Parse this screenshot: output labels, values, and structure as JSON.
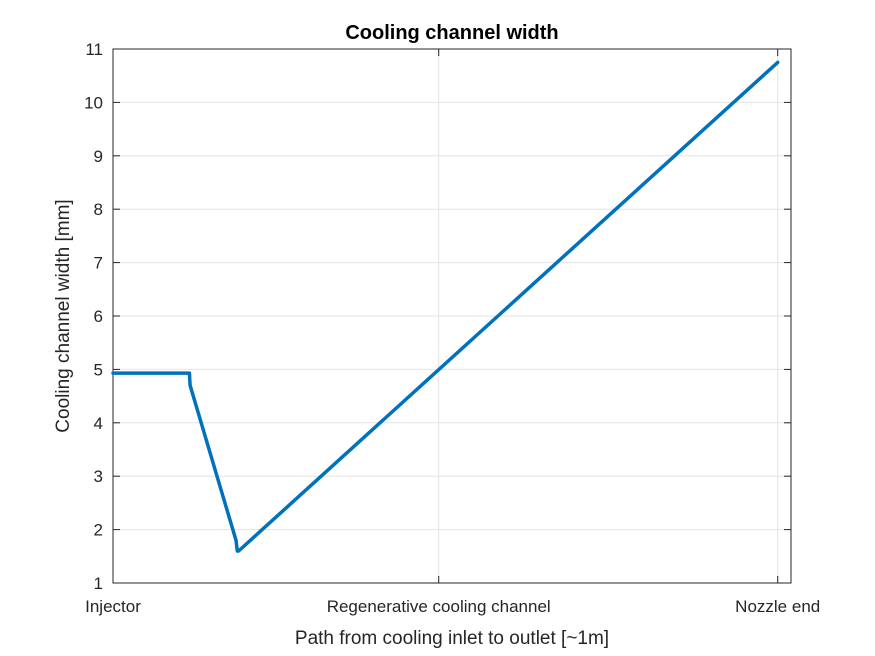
{
  "chart_data": {
    "type": "line",
    "title": "Cooling channel width",
    "xlabel": "Path from cooling inlet to outlet [~1m]",
    "ylabel": "Cooling channel width [mm]",
    "ylim": [
      1,
      11
    ],
    "xlim": [
      0,
      1.02
    ],
    "yticks": [
      1,
      2,
      3,
      4,
      5,
      6,
      7,
      8,
      9,
      10,
      11
    ],
    "xticks": [
      {
        "value": 0,
        "label": "Injector"
      },
      {
        "value": 0.49,
        "label": "Regenerative cooling channel"
      },
      {
        "value": 1.0,
        "label": "Nozzle end"
      }
    ],
    "grid": true,
    "series": [
      {
        "color": "#0072BD",
        "x": [
          0,
          0.115,
          0.116,
          0.185,
          0.187,
          0.189,
          1.0
        ],
        "y": [
          4.93,
          4.93,
          4.7,
          1.8,
          1.6,
          1.6,
          10.75
        ]
      }
    ]
  }
}
